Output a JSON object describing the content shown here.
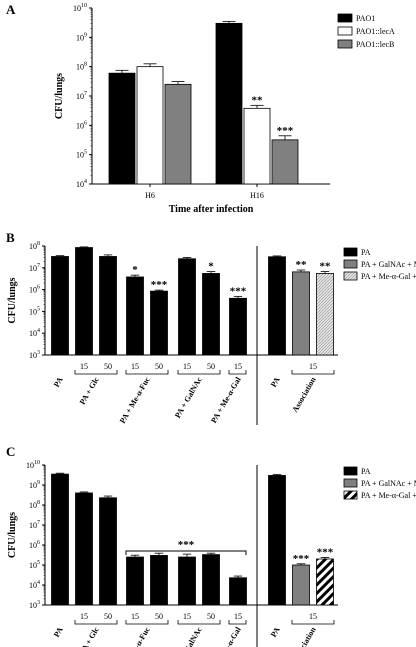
{
  "chart_data": [
    {
      "panel": "A",
      "type": "bar",
      "ylabel": "CFU/lungs",
      "xlabel": "Time after infection",
      "yscale": "log",
      "ylim": [
        10000,
        10000000000
      ],
      "categories": [
        "H6",
        "H16"
      ],
      "series": [
        {
          "name": "PAO1",
          "fill": "solid",
          "values": [
            60000000,
            3000000000
          ],
          "errors": [
            15000000,
            500000000
          ],
          "stars": [
            "",
            ""
          ]
        },
        {
          "name": "PAO1::lecA",
          "fill": "white",
          "values": [
            100000000,
            3800000
          ],
          "errors": [
            25000000,
            1000000
          ],
          "stars": [
            "",
            "**"
          ]
        },
        {
          "name": "PAO1::lecB",
          "fill": "gray",
          "values": [
            25000000,
            320000
          ],
          "errors": [
            6000000,
            120000
          ],
          "stars": [
            "",
            "***"
          ]
        }
      ],
      "y_ticks": [
        "10",
        "10",
        "10",
        "10",
        "10",
        "10",
        "10"
      ],
      "y_exps": [
        "4",
        "5",
        "6",
        "7",
        "8",
        "9",
        "10"
      ]
    },
    {
      "panel": "B",
      "type": "bar",
      "ylabel": "CFU/lungs",
      "yscale": "log",
      "ylim": [
        1000,
        100000000
      ],
      "bars": [
        {
          "value": 33000000,
          "error": 3000000,
          "fill": "solid",
          "star": ""
        },
        {
          "value": 85000000,
          "error": 6000000,
          "fill": "solid",
          "star": ""
        },
        {
          "value": 33000000,
          "error": 6000000,
          "fill": "solid",
          "star": ""
        },
        {
          "value": 3800000,
          "error": 800000,
          "fill": "solid",
          "star": "*"
        },
        {
          "value": 850000,
          "error": 100000,
          "fill": "solid",
          "star": "***"
        },
        {
          "value": 26000000,
          "error": 4000000,
          "fill": "solid",
          "star": ""
        },
        {
          "value": 5500000,
          "error": 1200000,
          "fill": "solid",
          "star": "*"
        },
        {
          "value": 400000,
          "error": 90000,
          "fill": "solid",
          "star": "***"
        },
        {
          "value": 32000000,
          "error": 3000000,
          "fill": "solid",
          "star": ""
        },
        {
          "value": 6500000,
          "error": 1400000,
          "fill": "gray",
          "star": "**"
        },
        {
          "value": 5500000,
          "error": 1200000,
          "fill": "hatch-light",
          "star": "**"
        }
      ],
      "doses": [
        "15",
        "50",
        "15",
        "50",
        "15",
        "50",
        "15",
        "15"
      ],
      "groups": [
        "PA",
        "PA + Glc",
        "PA + Me-α-Fuc",
        "PA + GalNAc",
        "PA + Me-α-Gal",
        "PA",
        "Association"
      ],
      "legend": [
        {
          "name": "PA",
          "fill": "solid"
        },
        {
          "name": "PA + GalNAc + Me-α-Fuc",
          "fill": "gray"
        },
        {
          "name": "PA + Me-α-Gal + Me-α-Fuc",
          "fill": "hatch-light"
        }
      ],
      "y_ticks": [
        "10",
        "10",
        "10",
        "10",
        "10",
        "10"
      ],
      "y_exps": [
        "3",
        "4",
        "5",
        "6",
        "7",
        "8"
      ]
    },
    {
      "panel": "C",
      "type": "bar",
      "ylabel": "CFU/lungs",
      "yscale": "log",
      "ylim": [
        1000,
        10000000000
      ],
      "bars": [
        {
          "value": 3500000000,
          "error": 400000000,
          "fill": "solid",
          "star": ""
        },
        {
          "value": 400000000,
          "error": 50000000,
          "fill": "solid",
          "star": ""
        },
        {
          "value": 230000000,
          "error": 50000000,
          "fill": "solid",
          "star": ""
        },
        {
          "value": 250000,
          "error": 60000,
          "fill": "solid",
          "star": ""
        },
        {
          "value": 300000,
          "error": 90000,
          "fill": "solid",
          "star": ""
        },
        {
          "value": 250000,
          "error": 100000,
          "fill": "solid",
          "star": ""
        },
        {
          "value": 330000,
          "error": 60000,
          "fill": "solid",
          "star": ""
        },
        {
          "value": 23000,
          "error": 5000,
          "fill": "solid",
          "star": ""
        },
        {
          "value": 3000000000,
          "error": 400000000,
          "fill": "solid",
          "star": ""
        },
        {
          "value": 100000,
          "error": 15000,
          "fill": "gray",
          "star": "***"
        },
        {
          "value": 200000,
          "error": 40000,
          "fill": "hatch-bold",
          "star": "***"
        }
      ],
      "bracket_star": "***",
      "doses": [
        "15",
        "50",
        "15",
        "50",
        "15",
        "50",
        "15",
        "15"
      ],
      "groups": [
        "PA",
        "PA + Glc",
        "PA + Me-α-Fuc",
        "PA + GalNAc",
        "PA + Me-α-Gal",
        "PA",
        "Association"
      ],
      "legend": [
        {
          "name": "PA",
          "fill": "solid"
        },
        {
          "name": "PA + GalNAc + Me-α-Fuc",
          "fill": "gray"
        },
        {
          "name": "PA + Me-α-Gal + Me-α-Fuc",
          "fill": "hatch-bold"
        }
      ],
      "y_ticks": [
        "10",
        "10",
        "10",
        "10",
        "10",
        "10",
        "10",
        "10"
      ],
      "y_exps": [
        "3",
        "4",
        "5",
        "6",
        "7",
        "8",
        "9",
        "10"
      ]
    }
  ]
}
